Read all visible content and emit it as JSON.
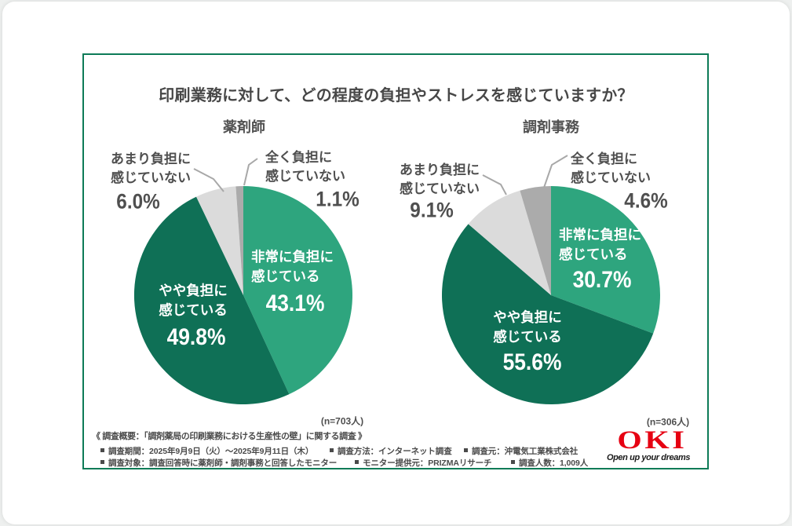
{
  "title": "印刷業務に対して、どの程度の負担やストレスを感じていますか？",
  "chart_data": [
    {
      "type": "pie",
      "title": "薬剤師",
      "n_label": "(n=703人)",
      "categories": [
        "非常に負担に感じている",
        "やや負担に感じている",
        "あまり負担に感じていない",
        "全く負担に感じていない"
      ],
      "values": [
        43.1,
        49.8,
        6.0,
        1.1
      ],
      "slices": [
        {
          "label_lines": [
            "非常に負担に",
            "感じている"
          ],
          "pct_label": "43.1%",
          "value": 43.1,
          "color": "#2ea57e",
          "inside": true
        },
        {
          "label_lines": [
            "やや負担に",
            "感じている"
          ],
          "pct_label": "49.8%",
          "value": 49.8,
          "color": "#0f7056",
          "inside": true
        },
        {
          "label_lines": [
            "あまり負担に",
            "感じていない"
          ],
          "pct_label": "6.0%",
          "value": 6.0,
          "color": "#dbdbdb",
          "inside": false
        },
        {
          "label_lines": [
            "全く負担に",
            "感じていない"
          ],
          "pct_label": "1.1%",
          "value": 1.1,
          "color": "#ababab",
          "inside": false
        }
      ]
    },
    {
      "type": "pie",
      "title": "調剤事務",
      "n_label": "(n=306人)",
      "categories": [
        "非常に負担に感じている",
        "やや負担に感じている",
        "あまり負担に感じていない",
        "全く負担に感じていない"
      ],
      "values": [
        30.7,
        55.6,
        9.1,
        4.6
      ],
      "slices": [
        {
          "label_lines": [
            "非常に負担に",
            "感じている"
          ],
          "pct_label": "30.7%",
          "value": 30.7,
          "color": "#2ea57e",
          "inside": true
        },
        {
          "label_lines": [
            "やや負担に",
            "感じている"
          ],
          "pct_label": "55.6%",
          "value": 55.6,
          "color": "#0f7056",
          "inside": true
        },
        {
          "label_lines": [
            "あまり負担に",
            "感じていない"
          ],
          "pct_label": "9.1%",
          "value": 9.1,
          "color": "#dbdbdb",
          "inside": false
        },
        {
          "label_lines": [
            "全く負担に",
            "感じていない"
          ],
          "pct_label": "4.6%",
          "value": 4.6,
          "color": "#ababab",
          "inside": false
        }
      ]
    }
  ],
  "footer": {
    "summary": "《 調査概要：「調剤薬局の印刷業務における生産性の壁」に関する調査 》",
    "row1": [
      "調査期間：2025年9月9日（火）〜2025年9月11日（木）",
      "調査方法：インターネット調査",
      "調査元：沖電気工業株式会社"
    ],
    "row2": [
      "調査対象：調査回答時に薬剤師・調剤事務と回答したモニター",
      "モニター提供元：PRIZMAリサーチ",
      "調査人数：1,009人"
    ]
  },
  "logo": {
    "text": "OKI",
    "tagline": "Open up your dreams",
    "color": "#e60012"
  }
}
